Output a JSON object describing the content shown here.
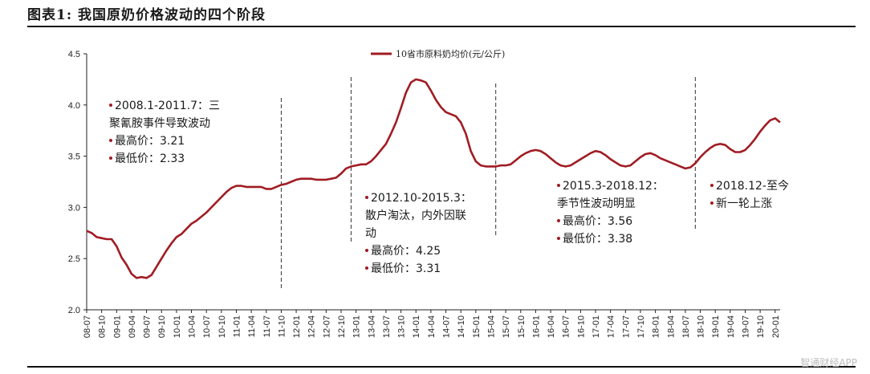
{
  "figure": {
    "title": "图表1:    我国原奶价格波动的四个阶段"
  },
  "watermark": "智通财经APP",
  "chart_data": {
    "type": "line",
    "series": [
      {
        "name": "10省市原料奶均价(元/公斤)",
        "color": "#a01c23",
        "points": [
          [
            "2008-07",
            2.77
          ],
          [
            "2008-08",
            2.75
          ],
          [
            "2008-09",
            2.71
          ],
          [
            "2008-10",
            2.7
          ],
          [
            "2008-11",
            2.69
          ],
          [
            "2008-12",
            2.69
          ],
          [
            "2009-01",
            2.62
          ],
          [
            "2009-02",
            2.51
          ],
          [
            "2009-03",
            2.44
          ],
          [
            "2009-04",
            2.35
          ],
          [
            "2009-05",
            2.31
          ],
          [
            "2009-06",
            2.32
          ],
          [
            "2009-07",
            2.31
          ],
          [
            "2009-08",
            2.34
          ],
          [
            "2009-09",
            2.42
          ],
          [
            "2009-10",
            2.5
          ],
          [
            "2009-11",
            2.58
          ],
          [
            "2009-12",
            2.65
          ],
          [
            "2010-01",
            2.71
          ],
          [
            "2010-02",
            2.74
          ],
          [
            "2010-03",
            2.79
          ],
          [
            "2010-04",
            2.84
          ],
          [
            "2010-05",
            2.87
          ],
          [
            "2010-06",
            2.91
          ],
          [
            "2010-07",
            2.95
          ],
          [
            "2010-08",
            3.0
          ],
          [
            "2010-09",
            3.05
          ],
          [
            "2010-10",
            3.1
          ],
          [
            "2010-11",
            3.15
          ],
          [
            "2010-12",
            3.19
          ],
          [
            "2011-01",
            3.21
          ],
          [
            "2011-02",
            3.21
          ],
          [
            "2011-03",
            3.2
          ],
          [
            "2011-04",
            3.2
          ],
          [
            "2011-05",
            3.2
          ],
          [
            "2011-06",
            3.2
          ],
          [
            "2011-07",
            3.18
          ],
          [
            "2011-08",
            3.18
          ],
          [
            "2011-09",
            3.2
          ],
          [
            "2011-10",
            3.22
          ],
          [
            "2011-11",
            3.23
          ],
          [
            "2011-12",
            3.25
          ],
          [
            "2012-01",
            3.27
          ],
          [
            "2012-02",
            3.28
          ],
          [
            "2012-03",
            3.28
          ],
          [
            "2012-04",
            3.28
          ],
          [
            "2012-05",
            3.27
          ],
          [
            "2012-06",
            3.27
          ],
          [
            "2012-07",
            3.27
          ],
          [
            "2012-08",
            3.28
          ],
          [
            "2012-09",
            3.29
          ],
          [
            "2012-10",
            3.33
          ],
          [
            "2012-11",
            3.38
          ],
          [
            "2012-12",
            3.4
          ],
          [
            "2013-01",
            3.41
          ],
          [
            "2013-02",
            3.42
          ],
          [
            "2013-03",
            3.42
          ],
          [
            "2013-04",
            3.45
          ],
          [
            "2013-05",
            3.5
          ],
          [
            "2013-06",
            3.56
          ],
          [
            "2013-07",
            3.62
          ],
          [
            "2013-08",
            3.72
          ],
          [
            "2013-09",
            3.83
          ],
          [
            "2013-10",
            3.97
          ],
          [
            "2013-11",
            4.12
          ],
          [
            "2013-12",
            4.22
          ],
          [
            "2014-01",
            4.25
          ],
          [
            "2014-02",
            4.24
          ],
          [
            "2014-03",
            4.22
          ],
          [
            "2014-04",
            4.14
          ],
          [
            "2014-05",
            4.05
          ],
          [
            "2014-06",
            3.98
          ],
          [
            "2014-07",
            3.93
          ],
          [
            "2014-08",
            3.91
          ],
          [
            "2014-09",
            3.89
          ],
          [
            "2014-10",
            3.83
          ],
          [
            "2014-11",
            3.72
          ],
          [
            "2014-12",
            3.55
          ],
          [
            "2015-01",
            3.45
          ],
          [
            "2015-02",
            3.41
          ],
          [
            "2015-03",
            3.4
          ],
          [
            "2015-04",
            3.4
          ],
          [
            "2015-05",
            3.4
          ],
          [
            "2015-06",
            3.41
          ],
          [
            "2015-07",
            3.41
          ],
          [
            "2015-08",
            3.42
          ],
          [
            "2015-09",
            3.46
          ],
          [
            "2015-10",
            3.5
          ],
          [
            "2015-11",
            3.53
          ],
          [
            "2015-12",
            3.55
          ],
          [
            "2016-01",
            3.56
          ],
          [
            "2016-02",
            3.55
          ],
          [
            "2016-03",
            3.52
          ],
          [
            "2016-04",
            3.48
          ],
          [
            "2016-05",
            3.44
          ],
          [
            "2016-06",
            3.41
          ],
          [
            "2016-07",
            3.4
          ],
          [
            "2016-08",
            3.41
          ],
          [
            "2016-09",
            3.44
          ],
          [
            "2016-10",
            3.47
          ],
          [
            "2016-11",
            3.5
          ],
          [
            "2016-12",
            3.53
          ],
          [
            "2017-01",
            3.55
          ],
          [
            "2017-02",
            3.54
          ],
          [
            "2017-03",
            3.51
          ],
          [
            "2017-04",
            3.47
          ],
          [
            "2017-05",
            3.44
          ],
          [
            "2017-06",
            3.41
          ],
          [
            "2017-07",
            3.4
          ],
          [
            "2017-08",
            3.41
          ],
          [
            "2017-09",
            3.45
          ],
          [
            "2017-10",
            3.49
          ],
          [
            "2017-11",
            3.52
          ],
          [
            "2017-12",
            3.53
          ],
          [
            "2018-01",
            3.51
          ],
          [
            "2018-02",
            3.48
          ],
          [
            "2018-03",
            3.46
          ],
          [
            "2018-04",
            3.44
          ],
          [
            "2018-05",
            3.42
          ],
          [
            "2018-06",
            3.4
          ],
          [
            "2018-07",
            3.38
          ],
          [
            "2018-08",
            3.39
          ],
          [
            "2018-09",
            3.43
          ],
          [
            "2018-10",
            3.49
          ],
          [
            "2018-11",
            3.54
          ],
          [
            "2018-12",
            3.58
          ],
          [
            "2019-01",
            3.61
          ],
          [
            "2019-02",
            3.62
          ],
          [
            "2019-03",
            3.61
          ],
          [
            "2019-04",
            3.57
          ],
          [
            "2019-05",
            3.54
          ],
          [
            "2019-06",
            3.54
          ],
          [
            "2019-07",
            3.56
          ],
          [
            "2019-08",
            3.61
          ],
          [
            "2019-09",
            3.67
          ],
          [
            "2019-10",
            3.74
          ],
          [
            "2019-11",
            3.8
          ],
          [
            "2019-12",
            3.85
          ],
          [
            "2020-01",
            3.87
          ],
          [
            "2020-02",
            3.83
          ]
        ]
      }
    ],
    "x_tick_labels": [
      "08-07",
      "08-10",
      "09-01",
      "09-04",
      "09-07",
      "09-10",
      "10-01",
      "10-04",
      "10-07",
      "10-10",
      "11-01",
      "11-04",
      "11-07",
      "11-10",
      "12-01",
      "12-04",
      "12-07",
      "12-10",
      "13-01",
      "13-04",
      "13-07",
      "13-10",
      "14-01",
      "14-04",
      "14-07",
      "14-10",
      "15-01",
      "15-04",
      "15-07",
      "15-10",
      "16-01",
      "16-04",
      "16-07",
      "16-10",
      "17-01",
      "17-04",
      "17-07",
      "17-10",
      "18-01",
      "18-04",
      "18-07",
      "18-10",
      "19-01",
      "19-04",
      "19-07",
      "19-10",
      "20-01"
    ],
    "y_ticks": [
      "2.0",
      "2.5",
      "3.0",
      "3.5",
      "4.0",
      "4.5"
    ],
    "ylim": [
      2.0,
      4.5
    ],
    "grid": false,
    "legend_position": "top-center",
    "dividers": [
      "2011-10",
      "2012-12",
      "2015-05",
      "2018-09"
    ],
    "annotations": [
      {
        "lines": [
          "2008.1-2011.7：三",
          "聚氰胺事件导致波动",
          "最高价：3.21",
          "最低价：2.33"
        ],
        "bullets": [
          true,
          false,
          true,
          true
        ]
      },
      {
        "lines": [
          "2012.10-2015.3：",
          "散户淘汰，内外因联",
          "动",
          "最高价：4.25",
          "最低价：3.31"
        ],
        "bullets": [
          true,
          false,
          false,
          true,
          true
        ]
      },
      {
        "lines": [
          "2015.3-2018.12：",
          "季节性波动明显",
          "最高价：3.56",
          "最低价：3.38"
        ],
        "bullets": [
          true,
          false,
          true,
          true
        ]
      },
      {
        "lines": [
          "2018.12-至今",
          "新一轮上涨"
        ],
        "bullets": [
          true,
          true
        ]
      }
    ]
  }
}
